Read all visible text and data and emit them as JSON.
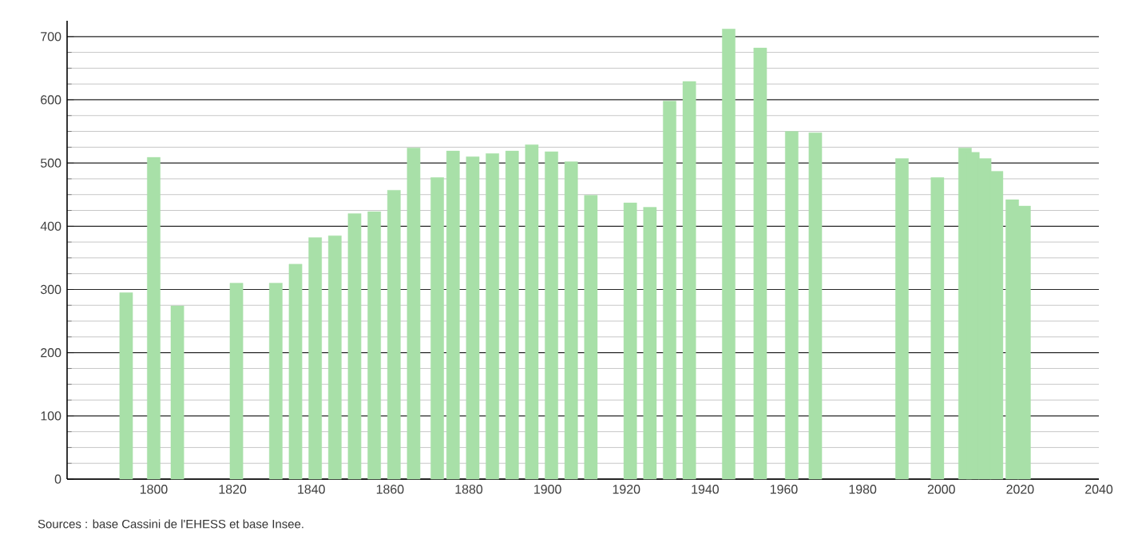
{
  "chart_data": {
    "type": "bar",
    "x": [
      1793,
      1800,
      1806,
      1821,
      1831,
      1836,
      1841,
      1846,
      1851,
      1856,
      1861,
      1866,
      1872,
      1876,
      1881,
      1886,
      1891,
      1896,
      1901,
      1906,
      1911,
      1921,
      1926,
      1931,
      1936,
      1946,
      1954,
      1962,
      1968,
      1990,
      1999,
      2006,
      2008,
      2011,
      2014,
      2018,
      2021
    ],
    "values": [
      295,
      509,
      274,
      310,
      310,
      340,
      382,
      385,
      420,
      423,
      457,
      524,
      477,
      519,
      510,
      515,
      519,
      529,
      518,
      502,
      449,
      437,
      430,
      598,
      629,
      712,
      682,
      550,
      548,
      507,
      477,
      524,
      517,
      507,
      487,
      442,
      432
    ],
    "color": "#a8e0a8",
    "xlim": [
      1778,
      2040
    ],
    "xticks": [
      1800,
      1820,
      1840,
      1860,
      1880,
      1900,
      1920,
      1940,
      1960,
      1980,
      2000,
      2020,
      2040
    ],
    "ylim": [
      0,
      725
    ],
    "yticks": [
      0,
      100,
      200,
      300,
      400,
      500,
      600,
      700
    ],
    "grid": "y",
    "annotations": [
      "Sources : base Cassini de l'EHESS et base Insee."
    ]
  }
}
